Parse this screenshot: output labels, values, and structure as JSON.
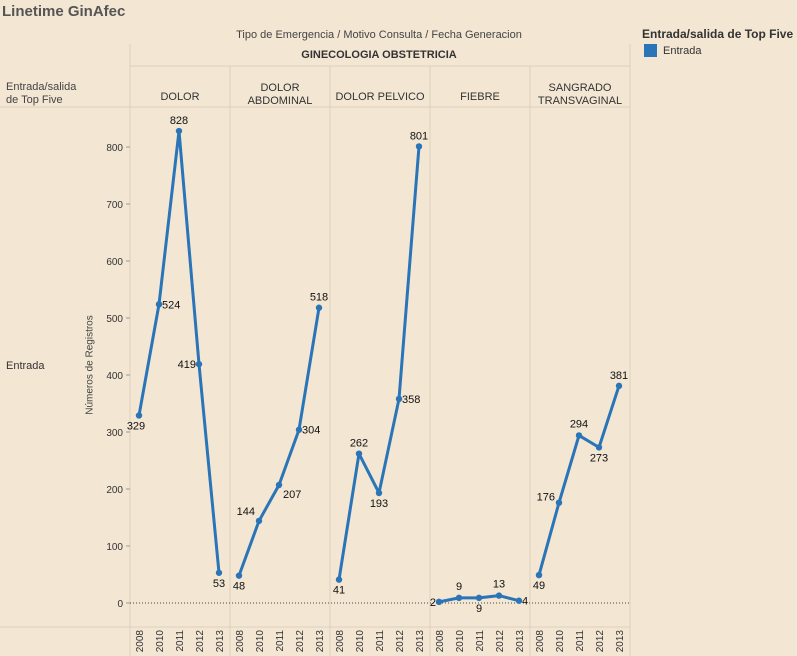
{
  "title": "Linetime GinAfec",
  "header_path": "Tipo de Emergencia  /  Motivo Consulta  /  Fecha Generacion",
  "group_label": "GINECOLOGIA OBSTETRICIA",
  "row_header_line1": "Entrada/salida",
  "row_header_line2": "de Top Five",
  "row_label": "Entrada",
  "legend": {
    "title": "Entrada/salida de Top Five",
    "items": [
      {
        "label": "Entrada",
        "color": "#2a74b8"
      }
    ]
  },
  "chart_data": {
    "type": "line",
    "ylabel": "Números de Registros",
    "ylim": [
      0,
      880
    ],
    "yticks": [
      0,
      100,
      200,
      300,
      400,
      500,
      600,
      700,
      800
    ],
    "x": [
      "2008",
      "2010",
      "2011",
      "2012",
      "2013"
    ],
    "panels": [
      {
        "name": "DOLOR",
        "name_lines": [
          "DOLOR"
        ],
        "values": [
          329,
          524,
          828,
          419,
          53
        ]
      },
      {
        "name": "DOLOR ABDOMINAL",
        "name_lines": [
          "DOLOR",
          "ABDOMINAL"
        ],
        "values": [
          48,
          144,
          207,
          304,
          518
        ]
      },
      {
        "name": "DOLOR PELVICO",
        "name_lines": [
          "DOLOR PELVICO"
        ],
        "values": [
          41,
          262,
          193,
          358,
          801
        ]
      },
      {
        "name": "FIEBRE",
        "name_lines": [
          "FIEBRE"
        ],
        "values": [
          2,
          9,
          9,
          13,
          4
        ]
      },
      {
        "name": "SANGRADO TRANSVAGINAL",
        "name_lines": [
          "SANGRADO",
          "TRANSVAGINAL"
        ],
        "values": [
          49,
          176,
          294,
          273,
          381
        ]
      }
    ],
    "color": "#2a74b8"
  }
}
